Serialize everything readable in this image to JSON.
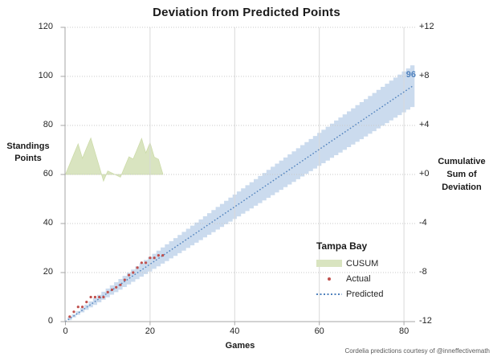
{
  "chart_data": {
    "type": "line",
    "title": "Deviation from Predicted Points",
    "xlabel": "Games",
    "ylabel_left": "Standings\nPoints",
    "ylabel_right": "Cumulative\nSum of\nDeviation",
    "x_ticks": [
      0,
      20,
      40,
      60,
      80
    ],
    "y_ticks_left": [
      0,
      20,
      40,
      60,
      80,
      100,
      120
    ],
    "y_ticks_right": [
      "+12",
      "+8",
      "+4",
      "+0",
      "-4",
      "-8",
      "-12"
    ],
    "xlim": [
      0,
      82.5
    ],
    "ylim_left": [
      0,
      120
    ],
    "ylim_right": [
      -12,
      12
    ],
    "grid": true,
    "end_label": {
      "text": "96",
      "game": 82,
      "points": 96
    },
    "series": [
      {
        "name": "CUSUM",
        "type": "area",
        "axis": "right",
        "x": [
          0,
          1,
          2,
          3,
          4,
          5,
          6,
          7,
          8,
          9,
          10,
          11,
          12,
          13,
          14,
          15,
          16,
          17,
          18,
          19,
          20,
          21,
          22,
          23
        ],
        "values": [
          0,
          0.83,
          1.66,
          2.49,
          1.32,
          2.15,
          2.97,
          1.8,
          0.63,
          -0.54,
          0.29,
          0.12,
          -0.05,
          -0.22,
          0.61,
          1.44,
          1.26,
          2.09,
          2.93,
          1.76,
          2.59,
          1.41,
          1.24,
          0.07
        ]
      },
      {
        "name": "Actual",
        "type": "scatter",
        "axis": "left",
        "x": [
          1,
          2,
          3,
          4,
          5,
          6,
          7,
          8,
          9,
          10,
          11,
          12,
          13,
          14,
          15,
          16,
          17,
          18,
          19,
          20,
          21,
          22,
          23
        ],
        "values": [
          2,
          4,
          6,
          6,
          8,
          10,
          10,
          10,
          10,
          12,
          13,
          14,
          15,
          17,
          19,
          20,
          22,
          24,
          24,
          26,
          26,
          27,
          27
        ]
      },
      {
        "name": "Predicted",
        "type": "dotted-line",
        "axis": "left",
        "x": [
          0,
          82
        ],
        "values": [
          0,
          96
        ]
      }
    ],
    "band": {
      "name": "prediction-interval",
      "games": 82,
      "center_end_points": 96,
      "halfwidth_coeff": 0.32,
      "halfwidth_exponent": 0.744,
      "halfwidth_at_game_82_points": 8.5
    },
    "colors": {
      "band": "#cbdbee",
      "predicted": "#4f81bd",
      "actual": "#c0504d",
      "cusum_fill": "#d9e4c0",
      "cusum_edge": "#ccdba8",
      "grid_h": "#c8c8c8",
      "grid_v": "#d9d9d9",
      "axis": "#a6a6a6",
      "end_label": "#4f81bd"
    }
  },
  "legend": {
    "title": "Tampa Bay",
    "items": [
      {
        "label": "CUSUM"
      },
      {
        "label": "Actual"
      },
      {
        "label": "Predicted"
      }
    ]
  },
  "caption": "Cordelia predictions courtesy of @inneffectivemath"
}
